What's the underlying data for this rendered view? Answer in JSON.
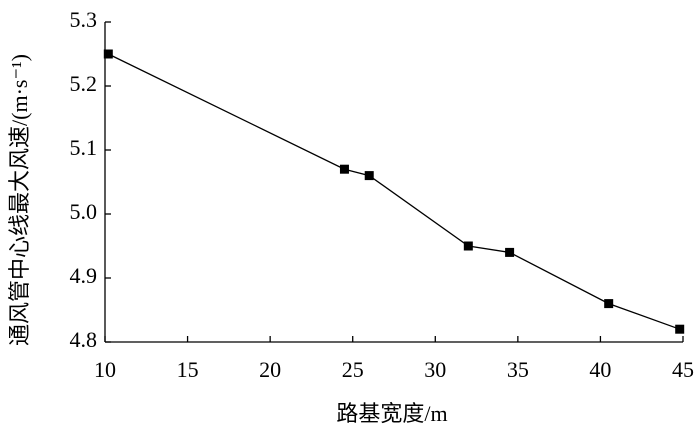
{
  "chart_data": {
    "type": "line",
    "x_label": "路基宽度/m",
    "y_label": "通风管中心线最大风速/(m·s⁻¹)",
    "x": [
      10.2,
      24.5,
      26,
      32,
      34.5,
      40.5,
      44.8
    ],
    "series": [
      {
        "color": "#000000",
        "values": [
          5.25,
          5.07,
          5.06,
          4.95,
          4.94,
          4.86,
          4.82
        ]
      }
    ],
    "xlim": [
      10,
      45
    ],
    "xticks": [
      10,
      15,
      20,
      25,
      30,
      35,
      40,
      45
    ],
    "ylim": [
      4.8,
      5.3
    ],
    "yticks": [
      {
        "value": 4.8,
        "label": "4.8"
      },
      {
        "value": 4.9,
        "label": "4.9"
      },
      {
        "value": 5.0,
        "label": "5.0"
      },
      {
        "value": 5.1,
        "label": "5.1"
      },
      {
        "value": 5.2,
        "label": "5.2"
      },
      {
        "value": 5.3,
        "label": "5.3"
      }
    ]
  }
}
